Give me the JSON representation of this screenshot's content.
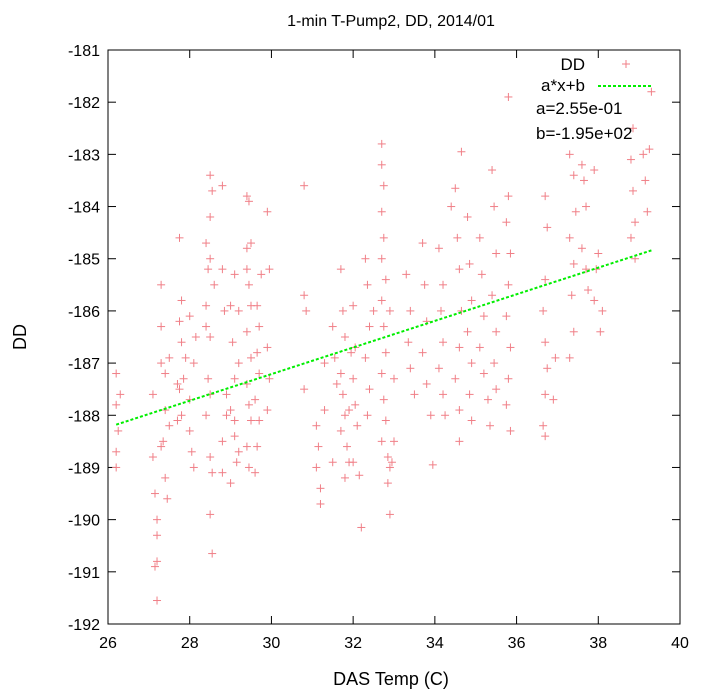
{
  "chart_data": {
    "type": "scatter",
    "title": "1-min T-Pump2, DD, 2014/01",
    "xlabel": "DAS Temp (C)",
    "ylabel": "DD",
    "xlim": [
      26,
      40
    ],
    "ylim": [
      -192,
      -181
    ],
    "xticks": [
      "26",
      "28",
      "30",
      "32",
      "34",
      "36",
      "38",
      "40"
    ],
    "yticks": [
      "-192",
      "-191",
      "-190",
      "-189",
      "-188",
      "-187",
      "-186",
      "-185",
      "-184",
      "-183",
      "-182",
      "-181"
    ],
    "grid": false,
    "legend_position": "top-right",
    "colors": {
      "scatter": "#f07f87",
      "fit": "#00ee00"
    },
    "series": [
      {
        "name": "DD",
        "kind": "scatter",
        "points": [
          [
            26.2,
            -187.2
          ],
          [
            26.2,
            -187.8
          ],
          [
            26.25,
            -188.3
          ],
          [
            26.2,
            -189.0
          ],
          [
            26.3,
            -187.6
          ],
          [
            26.2,
            -188.7
          ],
          [
            27.1,
            -187.6
          ],
          [
            27.1,
            -188.8
          ],
          [
            27.15,
            -189.5
          ],
          [
            27.2,
            -190.0
          ],
          [
            27.2,
            -190.3
          ],
          [
            27.2,
            -190.8
          ],
          [
            27.15,
            -190.9
          ],
          [
            27.2,
            -191.55
          ],
          [
            27.3,
            -188.6
          ],
          [
            27.35,
            -188.5
          ],
          [
            27.4,
            -187.2
          ],
          [
            27.3,
            -186.3
          ],
          [
            27.3,
            -185.5
          ],
          [
            27.4,
            -189.2
          ],
          [
            27.45,
            -189.6
          ],
          [
            27.5,
            -188.2
          ],
          [
            27.4,
            -187.9
          ],
          [
            27.3,
            -187.0
          ],
          [
            27.5,
            -186.9
          ],
          [
            27.7,
            -187.4
          ],
          [
            27.75,
            -187.5
          ],
          [
            27.8,
            -186.6
          ],
          [
            27.75,
            -186.2
          ],
          [
            27.8,
            -185.8
          ],
          [
            27.75,
            -184.6
          ],
          [
            27.8,
            -188.0
          ],
          [
            27.85,
            -187.3
          ],
          [
            27.9,
            -186.9
          ],
          [
            27.7,
            -188.1
          ],
          [
            28.0,
            -188.3
          ],
          [
            28.05,
            -188.7
          ],
          [
            28.1,
            -189.0
          ],
          [
            28.0,
            -187.7
          ],
          [
            28.1,
            -187.0
          ],
          [
            28.15,
            -186.5
          ],
          [
            28.0,
            -186.1
          ],
          [
            28.4,
            -185.9
          ],
          [
            28.45,
            -185.2
          ],
          [
            28.4,
            -184.7
          ],
          [
            28.5,
            -184.2
          ],
          [
            28.5,
            -183.4
          ],
          [
            28.55,
            -183.7
          ],
          [
            28.4,
            -186.3
          ],
          [
            28.5,
            -186.5
          ],
          [
            28.45,
            -187.3
          ],
          [
            28.5,
            -187.6
          ],
          [
            28.4,
            -188.0
          ],
          [
            28.5,
            -188.8
          ],
          [
            28.55,
            -189.1
          ],
          [
            28.5,
            -189.9
          ],
          [
            28.55,
            -190.65
          ],
          [
            28.6,
            -185.5
          ],
          [
            28.5,
            -185.0
          ],
          [
            28.8,
            -183.6
          ],
          [
            28.8,
            -185.2
          ],
          [
            28.85,
            -186.0
          ],
          [
            28.9,
            -187.6
          ],
          [
            28.8,
            -188.5
          ],
          [
            28.9,
            -188.0
          ],
          [
            28.8,
            -189.1
          ],
          [
            29.1,
            -185.3
          ],
          [
            29.0,
            -185.9
          ],
          [
            29.05,
            -186.6
          ],
          [
            29.1,
            -187.3
          ],
          [
            29.0,
            -187.9
          ],
          [
            29.1,
            -188.4
          ],
          [
            29.15,
            -188.9
          ],
          [
            29.0,
            -189.3
          ],
          [
            29.2,
            -186.0
          ],
          [
            29.2,
            -187.0
          ],
          [
            29.1,
            -188.1
          ],
          [
            29.2,
            -188.7
          ],
          [
            29.4,
            -183.8
          ],
          [
            29.45,
            -183.9
          ],
          [
            29.4,
            -184.8
          ],
          [
            29.4,
            -185.2
          ],
          [
            29.45,
            -185.5
          ],
          [
            29.5,
            -185.9
          ],
          [
            29.4,
            -186.4
          ],
          [
            29.5,
            -186.9
          ],
          [
            29.4,
            -187.4
          ],
          [
            29.45,
            -187.8
          ],
          [
            29.5,
            -188.1
          ],
          [
            29.4,
            -188.6
          ],
          [
            29.45,
            -189.0
          ],
          [
            29.5,
            -184.7
          ],
          [
            29.65,
            -185.9
          ],
          [
            29.7,
            -186.3
          ],
          [
            29.65,
            -186.8
          ],
          [
            29.7,
            -187.2
          ],
          [
            29.6,
            -187.7
          ],
          [
            29.7,
            -188.1
          ],
          [
            29.65,
            -188.6
          ],
          [
            29.6,
            -189.1
          ],
          [
            29.75,
            -185.3
          ],
          [
            29.9,
            -184.1
          ],
          [
            29.95,
            -185.2
          ],
          [
            29.9,
            -186.7
          ],
          [
            29.95,
            -187.3
          ],
          [
            29.9,
            -187.9
          ],
          [
            30.8,
            -183.6
          ],
          [
            30.8,
            -185.7
          ],
          [
            30.85,
            -186.0
          ],
          [
            30.8,
            -187.5
          ],
          [
            31.1,
            -188.2
          ],
          [
            31.15,
            -188.6
          ],
          [
            31.1,
            -189.0
          ],
          [
            31.2,
            -189.4
          ],
          [
            31.2,
            -189.7
          ],
          [
            31.3,
            -187.9
          ],
          [
            31.3,
            -187.0
          ],
          [
            31.5,
            -186.3
          ],
          [
            31.55,
            -186.9
          ],
          [
            31.6,
            -187.4
          ],
          [
            31.5,
            -188.9
          ],
          [
            31.7,
            -185.2
          ],
          [
            31.75,
            -186.0
          ],
          [
            31.8,
            -186.5
          ],
          [
            31.7,
            -187.2
          ],
          [
            31.75,
            -187.6
          ],
          [
            31.8,
            -188.0
          ],
          [
            31.7,
            -188.3
          ],
          [
            31.85,
            -188.6
          ],
          [
            31.9,
            -188.9
          ],
          [
            31.8,
            -189.2
          ],
          [
            31.9,
            -187.9
          ],
          [
            31.95,
            -186.8
          ],
          [
            32.0,
            -185.9
          ],
          [
            32.05,
            -186.7
          ],
          [
            32.0,
            -187.3
          ],
          [
            32.05,
            -187.8
          ],
          [
            32.1,
            -188.2
          ],
          [
            32.0,
            -188.9
          ],
          [
            32.15,
            -189.15
          ],
          [
            32.2,
            -190.15
          ],
          [
            32.3,
            -185.0
          ],
          [
            32.35,
            -185.5
          ],
          [
            32.4,
            -186.3
          ],
          [
            32.3,
            -186.9
          ],
          [
            32.4,
            -187.5
          ],
          [
            32.35,
            -188.0
          ],
          [
            32.5,
            -186.0
          ],
          [
            32.7,
            -182.8
          ],
          [
            32.7,
            -183.2
          ],
          [
            32.75,
            -183.6
          ],
          [
            32.7,
            -184.1
          ],
          [
            32.75,
            -184.6
          ],
          [
            32.7,
            -185.0
          ],
          [
            32.8,
            -185.4
          ],
          [
            32.7,
            -185.8
          ],
          [
            32.75,
            -186.3
          ],
          [
            32.8,
            -186.8
          ],
          [
            32.7,
            -187.2
          ],
          [
            32.75,
            -187.7
          ],
          [
            32.8,
            -188.1
          ],
          [
            32.7,
            -188.5
          ],
          [
            32.85,
            -188.8
          ],
          [
            32.9,
            -189.0
          ],
          [
            32.85,
            -189.3
          ],
          [
            32.9,
            -189.9
          ],
          [
            32.95,
            -188.9
          ],
          [
            32.9,
            -186.0
          ],
          [
            33.0,
            -187.3
          ],
          [
            33.0,
            -188.5
          ],
          [
            33.3,
            -185.3
          ],
          [
            33.4,
            -186.0
          ],
          [
            33.35,
            -186.6
          ],
          [
            33.4,
            -187.1
          ],
          [
            33.5,
            -187.6
          ],
          [
            33.7,
            -184.7
          ],
          [
            33.75,
            -185.5
          ],
          [
            33.8,
            -186.2
          ],
          [
            33.7,
            -186.8
          ],
          [
            33.8,
            -187.4
          ],
          [
            33.9,
            -188.0
          ],
          [
            33.95,
            -188.95
          ],
          [
            34.1,
            -184.8
          ],
          [
            34.2,
            -185.5
          ],
          [
            34.15,
            -186.0
          ],
          [
            34.2,
            -186.6
          ],
          [
            34.1,
            -187.1
          ],
          [
            34.2,
            -187.6
          ],
          [
            34.25,
            -188.0
          ],
          [
            34.4,
            -184.0
          ],
          [
            34.5,
            -183.65
          ],
          [
            34.55,
            -184.6
          ],
          [
            34.6,
            -185.2
          ],
          [
            34.65,
            -186.0
          ],
          [
            34.6,
            -186.7
          ],
          [
            34.5,
            -187.3
          ],
          [
            34.6,
            -187.9
          ],
          [
            34.6,
            -188.5
          ],
          [
            34.65,
            -182.95
          ],
          [
            34.8,
            -184.2
          ],
          [
            34.85,
            -185.1
          ],
          [
            34.9,
            -185.8
          ],
          [
            34.8,
            -186.4
          ],
          [
            34.9,
            -187.0
          ],
          [
            34.85,
            -187.6
          ],
          [
            34.9,
            -188.1
          ],
          [
            35.1,
            -184.6
          ],
          [
            35.15,
            -185.3
          ],
          [
            35.2,
            -186.1
          ],
          [
            35.1,
            -186.7
          ],
          [
            35.2,
            -187.2
          ],
          [
            35.3,
            -187.7
          ],
          [
            35.35,
            -188.2
          ],
          [
            35.4,
            -183.3
          ],
          [
            35.45,
            -184.0
          ],
          [
            35.5,
            -184.9
          ],
          [
            35.4,
            -185.7
          ],
          [
            35.5,
            -186.4
          ],
          [
            35.45,
            -187.0
          ],
          [
            35.5,
            -187.5
          ],
          [
            35.8,
            -181.9
          ],
          [
            35.8,
            -183.8
          ],
          [
            35.75,
            -184.3
          ],
          [
            35.85,
            -184.9
          ],
          [
            35.8,
            -185.5
          ],
          [
            35.75,
            -186.1
          ],
          [
            35.85,
            -186.7
          ],
          [
            35.8,
            -187.3
          ],
          [
            35.75,
            -187.8
          ],
          [
            35.85,
            -188.3
          ],
          [
            36.7,
            -183.8
          ],
          [
            36.75,
            -184.4
          ],
          [
            36.7,
            -185.4
          ],
          [
            36.65,
            -186.0
          ],
          [
            36.7,
            -186.6
          ],
          [
            36.75,
            -187.1
          ],
          [
            36.7,
            -187.6
          ],
          [
            36.65,
            -188.2
          ],
          [
            36.7,
            -188.4
          ],
          [
            36.9,
            -187.7
          ],
          [
            36.95,
            -186.9
          ],
          [
            37.3,
            -183.0
          ],
          [
            37.4,
            -183.4
          ],
          [
            37.45,
            -184.1
          ],
          [
            37.3,
            -184.6
          ],
          [
            37.4,
            -185.1
          ],
          [
            37.35,
            -185.7
          ],
          [
            37.4,
            -186.4
          ],
          [
            37.3,
            -186.9
          ],
          [
            37.6,
            -183.2
          ],
          [
            37.65,
            -183.5
          ],
          [
            37.7,
            -184.0
          ],
          [
            37.6,
            -184.8
          ],
          [
            37.7,
            -185.2
          ],
          [
            37.75,
            -185.6
          ],
          [
            37.9,
            -185.8
          ],
          [
            37.95,
            -185.2
          ],
          [
            38.0,
            -184.9
          ],
          [
            38.05,
            -186.4
          ],
          [
            38.1,
            -186.0
          ],
          [
            37.9,
            -183.3
          ],
          [
            38.8,
            -183.1
          ],
          [
            38.85,
            -183.7
          ],
          [
            38.9,
            -184.3
          ],
          [
            38.8,
            -184.6
          ],
          [
            38.9,
            -185.0
          ],
          [
            38.85,
            -182.5
          ],
          [
            39.1,
            -183.0
          ],
          [
            39.15,
            -183.5
          ],
          [
            39.2,
            -184.1
          ],
          [
            39.25,
            -182.9
          ],
          [
            39.3,
            -181.8
          ]
        ]
      },
      {
        "name": "a*x+b",
        "kind": "line",
        "x": [
          26.2,
          39.3
        ],
        "y": [
          -188.18,
          -184.84
        ]
      }
    ],
    "annotations": [
      "a=2.55e-01",
      "b=-1.95e+02"
    ]
  }
}
